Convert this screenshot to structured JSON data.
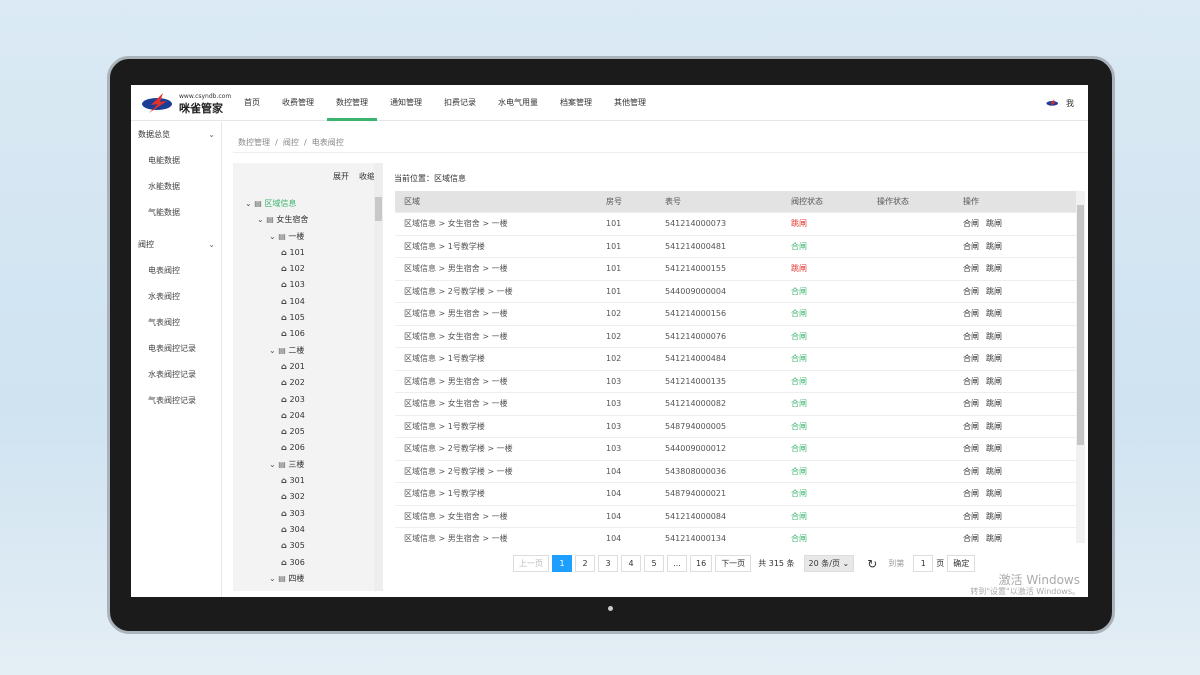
{
  "logo": {
    "site": "www.csyndb.com",
    "name": "咪雀管家"
  },
  "nav": [
    "首页",
    "收费管理",
    "数控管理",
    "通知管理",
    "扣费记录",
    "水电气用量",
    "档案管理",
    "其他管理"
  ],
  "nav_active": 2,
  "user": "我",
  "sidebar": {
    "groups": [
      {
        "label": "数据总览",
        "items": [
          "电能数据",
          "水能数据",
          "气能数据"
        ]
      },
      {
        "label": "阀控",
        "items": [
          "电表阀控",
          "水表阀控",
          "气表阀控",
          "电表阀控记录",
          "水表阀控记录",
          "气表阀控记录"
        ]
      }
    ]
  },
  "breadcrumb": "数控管理  /  阀控  /  电表阀控",
  "tree": {
    "expand": "展开",
    "collapse": "收缩",
    "nodes": [
      {
        "d": 0,
        "t": "folder",
        "l": "区域信息",
        "sel": true
      },
      {
        "d": 1,
        "t": "folder",
        "l": "女生宿舍"
      },
      {
        "d": 2,
        "t": "folder",
        "l": "一楼"
      },
      {
        "d": 3,
        "t": "home",
        "l": "101"
      },
      {
        "d": 3,
        "t": "home",
        "l": "102"
      },
      {
        "d": 3,
        "t": "home",
        "l": "103"
      },
      {
        "d": 3,
        "t": "home",
        "l": "104"
      },
      {
        "d": 3,
        "t": "home",
        "l": "105"
      },
      {
        "d": 3,
        "t": "home",
        "l": "106"
      },
      {
        "d": 2,
        "t": "folder",
        "l": "二楼"
      },
      {
        "d": 3,
        "t": "home",
        "l": "201"
      },
      {
        "d": 3,
        "t": "home",
        "l": "202"
      },
      {
        "d": 3,
        "t": "home",
        "l": "203"
      },
      {
        "d": 3,
        "t": "home",
        "l": "204"
      },
      {
        "d": 3,
        "t": "home",
        "l": "205"
      },
      {
        "d": 3,
        "t": "home",
        "l": "206"
      },
      {
        "d": 2,
        "t": "folder",
        "l": "三楼"
      },
      {
        "d": 3,
        "t": "home",
        "l": "301"
      },
      {
        "d": 3,
        "t": "home",
        "l": "302"
      },
      {
        "d": 3,
        "t": "home",
        "l": "303"
      },
      {
        "d": 3,
        "t": "home",
        "l": "304"
      },
      {
        "d": 3,
        "t": "home",
        "l": "305"
      },
      {
        "d": 3,
        "t": "home",
        "l": "306"
      },
      {
        "d": 2,
        "t": "folder",
        "l": "四楼"
      }
    ]
  },
  "location": "当前位置：区域信息",
  "table": {
    "headers": [
      "区域",
      "房号",
      "表号",
      "阀控状态",
      "操作状态",
      "操作"
    ],
    "actions": [
      "合闸",
      "跳闸"
    ],
    "rows": [
      [
        "区域信息 > 女生宿舍 > 一楼",
        "101",
        "541214000073",
        "跳闸"
      ],
      [
        "区域信息 > 1号教学楼",
        "101",
        "541214000481",
        "合闸"
      ],
      [
        "区域信息 > 男生宿舍 > 一楼",
        "101",
        "541214000155",
        "跳闸"
      ],
      [
        "区域信息 > 2号教学楼 > 一楼",
        "101",
        "544009000004",
        "合闸"
      ],
      [
        "区域信息 > 男生宿舍 > 一楼",
        "102",
        "541214000156",
        "合闸"
      ],
      [
        "区域信息 > 女生宿舍 > 一楼",
        "102",
        "541214000076",
        "合闸"
      ],
      [
        "区域信息 > 1号教学楼",
        "102",
        "541214000484",
        "合闸"
      ],
      [
        "区域信息 > 男生宿舍 > 一楼",
        "103",
        "541214000135",
        "合闸"
      ],
      [
        "区域信息 > 女生宿舍 > 一楼",
        "103",
        "541214000082",
        "合闸"
      ],
      [
        "区域信息 > 1号教学楼",
        "103",
        "548794000005",
        "合闸"
      ],
      [
        "区域信息 > 2号教学楼 > 一楼",
        "103",
        "544009000012",
        "合闸"
      ],
      [
        "区域信息 > 2号教学楼 > 一楼",
        "104",
        "543808000036",
        "合闸"
      ],
      [
        "区域信息 > 1号教学楼",
        "104",
        "548794000021",
        "合闸"
      ],
      [
        "区域信息 > 女生宿舍 > 一楼",
        "104",
        "541214000084",
        "合闸"
      ],
      [
        "区域信息 > 男生宿舍 > 一楼",
        "104",
        "541214000134",
        "合闸"
      ]
    ]
  },
  "pagination": {
    "prev": "上一页",
    "pages": [
      "1",
      "2",
      "3",
      "4",
      "5",
      "...",
      "16"
    ],
    "current": "1",
    "next": "下一页",
    "total": "共 315 条",
    "per_page": "20 条/页",
    "goto": "到第",
    "page_input": "1",
    "page_unit": "页",
    "confirm": "确定"
  },
  "watermark": {
    "title": "激活 Windows",
    "sub": "转到\"设置\"以激活 Windows。"
  },
  "colors": {
    "accent": "#3cb46e",
    "trip": "#e0312b",
    "active_page": "#1e9fff"
  }
}
